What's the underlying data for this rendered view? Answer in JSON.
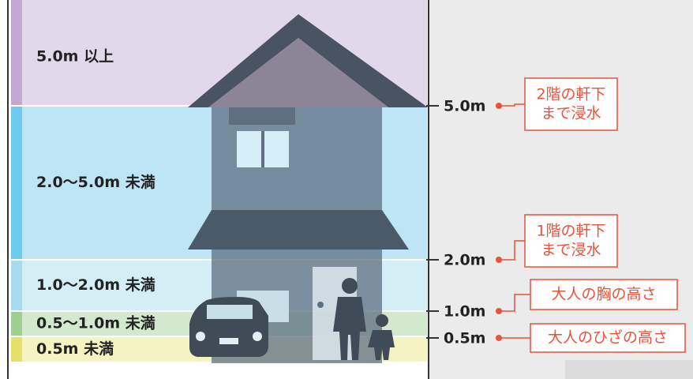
{
  "bands": [
    {
      "label": "5.0m 以上"
    },
    {
      "label": "2.0～5.0m 未満"
    },
    {
      "label": "1.0～2.0m 未満"
    },
    {
      "label": "0.5～1.0m 未満"
    },
    {
      "label": "0.5m 未満"
    }
  ],
  "markers": [
    {
      "label": "5.0m",
      "note": [
        "2階の軒下",
        "まで浸水"
      ]
    },
    {
      "label": "2.0m",
      "note": [
        "1階の軒下",
        "まで浸水"
      ]
    },
    {
      "label": "1.0m",
      "note": [
        "大人の胸の高さ"
      ]
    },
    {
      "label": "0.5m",
      "note": [
        "大人のひざの高さ"
      ]
    }
  ]
}
